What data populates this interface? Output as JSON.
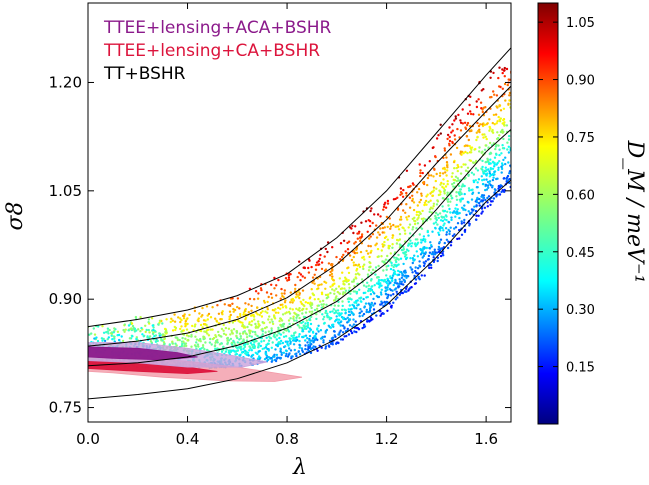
{
  "chart_data": {
    "type": "scatter",
    "xlabel": "λ",
    "ylabel": "σ8",
    "xlim": [
      0.0,
      1.7
    ],
    "ylim": [
      0.73,
      1.31
    ],
    "xticks": [
      "0.0",
      "0.4",
      "0.8",
      "1.2",
      "1.6"
    ],
    "yticks": [
      "0.75",
      "0.90",
      "1.05",
      "1.20"
    ],
    "colorbar": {
      "label": "D_M / meV⁻¹",
      "range": [
        0.0,
        1.1
      ],
      "ticks": [
        "0.15",
        "0.30",
        "0.45",
        "0.60",
        "0.75",
        "0.90",
        "1.05"
      ],
      "colormap": "jet"
    },
    "legend": {
      "placement": "top-left",
      "entries": [
        {
          "label": "TTEE+lensing+ACA+BSHR",
          "color": "#8b1a8b"
        },
        {
          "label": "TTEE+lensing+CA+BSHR",
          "color": "#dc143c"
        },
        {
          "label": "TT+BSHR",
          "color": "#000000"
        }
      ]
    },
    "contour_lines": [
      {
        "name": "TT+BSHR",
        "x": [
          0.0,
          0.2,
          0.4,
          0.6,
          0.8,
          1.0,
          1.2,
          1.4,
          1.6,
          1.7
        ],
        "y": [
          0.762,
          0.768,
          0.776,
          0.79,
          0.812,
          0.845,
          0.892,
          0.958,
          1.035,
          1.065
        ]
      },
      {
        "name": "TT+BSHR",
        "x": [
          0.0,
          0.2,
          0.4,
          0.6,
          0.8,
          1.0,
          1.2,
          1.4,
          1.6,
          1.7
        ],
        "y": [
          0.808,
          0.812,
          0.82,
          0.836,
          0.86,
          0.897,
          0.95,
          1.024,
          1.104,
          1.135
        ]
      },
      {
        "name": "TT+BSHR",
        "x": [
          0.0,
          0.2,
          0.4,
          0.6,
          0.8,
          1.0,
          1.2,
          1.4,
          1.6,
          1.7
        ],
        "y": [
          0.835,
          0.842,
          0.853,
          0.872,
          0.902,
          0.948,
          1.01,
          1.088,
          1.16,
          1.195
        ]
      },
      {
        "name": "TT+BSHR",
        "x": [
          0.0,
          0.2,
          0.4,
          0.6,
          0.8,
          1.0,
          1.2,
          1.4,
          1.6,
          1.7
        ],
        "y": [
          0.862,
          0.872,
          0.885,
          0.905,
          0.935,
          0.985,
          1.05,
          1.13,
          1.21,
          1.248
        ]
      }
    ],
    "contours": [
      {
        "name": "TTEE+lensing+CA+BSHR",
        "level": "outer",
        "color": "#f29aa8",
        "points": [
          [
            0.0,
            0.822
          ],
          [
            0.2,
            0.82
          ],
          [
            0.4,
            0.814
          ],
          [
            0.6,
            0.806
          ],
          [
            0.75,
            0.798
          ],
          [
            0.86,
            0.792
          ],
          [
            0.75,
            0.786
          ],
          [
            0.55,
            0.787
          ],
          [
            0.3,
            0.792
          ],
          [
            0.1,
            0.798
          ],
          [
            0.0,
            0.8
          ]
        ]
      },
      {
        "name": "TTEE+lensing+CA+BSHR",
        "level": "inner",
        "color": "#dc143c",
        "points": [
          [
            0.0,
            0.815
          ],
          [
            0.2,
            0.812
          ],
          [
            0.4,
            0.806
          ],
          [
            0.52,
            0.8
          ],
          [
            0.4,
            0.797
          ],
          [
            0.2,
            0.8
          ],
          [
            0.0,
            0.804
          ]
        ]
      },
      {
        "name": "TTEE+lensing+ACA+BSHR",
        "level": "outer",
        "color": "#c9a2dc",
        "points": [
          [
            0.0,
            0.84
          ],
          [
            0.2,
            0.84
          ],
          [
            0.4,
            0.832
          ],
          [
            0.58,
            0.822
          ],
          [
            0.72,
            0.813
          ],
          [
            0.62,
            0.806
          ],
          [
            0.4,
            0.806
          ],
          [
            0.2,
            0.812
          ],
          [
            0.0,
            0.815
          ]
        ]
      },
      {
        "name": "TTEE+lensing+ACA+BSHR",
        "level": "inner",
        "color": "#8b1a8b",
        "points": [
          [
            0.0,
            0.834
          ],
          [
            0.2,
            0.832
          ],
          [
            0.36,
            0.826
          ],
          [
            0.44,
            0.82
          ],
          [
            0.3,
            0.816
          ],
          [
            0.1,
            0.818
          ],
          [
            0.0,
            0.82
          ]
        ]
      }
    ],
    "scatter_trend": {
      "description_points": [
        [
          0.0,
          0.835,
          0.2
        ],
        [
          0.4,
          0.85,
          0.55
        ],
        [
          0.8,
          0.89,
          0.7
        ],
        [
          1.2,
          0.98,
          0.8
        ],
        [
          1.6,
          1.12,
          0.9
        ]
      ]
    }
  }
}
